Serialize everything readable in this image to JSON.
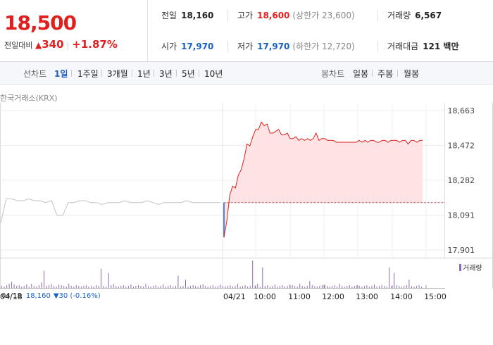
{
  "price": {
    "current": "18,500",
    "change_label": "전일대비",
    "change_arrow": "▲",
    "change_value": "340",
    "change_pct": "+1.87%"
  },
  "stats": {
    "prev_close": {
      "label": "전일",
      "value": "18,160"
    },
    "high": {
      "label": "고가",
      "value": "18,600",
      "sub": "(상한가 23,600)"
    },
    "volume": {
      "label": "거래량",
      "value": "6,567"
    },
    "open": {
      "label": "시가",
      "value": "17,970"
    },
    "low": {
      "label": "저가",
      "value": "17,970",
      "sub": "(하한가 12,720)"
    },
    "amount": {
      "label": "거래대금",
      "value": "121 백만"
    }
  },
  "tabs": {
    "line_label": "선차트",
    "line": [
      "1일",
      "1주일",
      "3개월",
      "1년",
      "3년",
      "5년",
      "10년"
    ],
    "candle_label": "봉차트",
    "candle": [
      "일봉",
      "주봉",
      "월봉"
    ]
  },
  "colors": {
    "up": "#e0201f",
    "down": "#1761c5",
    "active_tab": "#1d5bc8",
    "area_fill": "#fde3e4",
    "prev_day_line": "#c3c3c3",
    "volume_bar": "#8b6ab0"
  },
  "chart": {
    "source": "한국거래소(KRX)",
    "volume_legend": "거래량",
    "prev_day_label": "04/18",
    "prev_day_value": "18,160",
    "prev_day_change": "▼30 (-0.16%)"
  },
  "chart_data": {
    "type": "line",
    "ylim": [
      17901,
      18663
    ],
    "y_ticks": [
      "18,663",
      "18,472",
      "18,282",
      "18,091",
      "17,901"
    ],
    "x_ticks": [
      "04/18",
      "04/21",
      "10:00",
      "11:00",
      "12:00",
      "13:00",
      "14:00",
      "15:00"
    ],
    "reference_line": 18160,
    "prev_day_series": [
      18050,
      18180,
      18180,
      18170,
      18170,
      18180,
      18170,
      18170,
      18160,
      18170,
      18090,
      18090,
      18160,
      18160,
      18170,
      18170,
      18160,
      18160,
      18150,
      18160,
      18160,
      18160,
      18170,
      18160,
      18160,
      18160,
      18170,
      18160,
      18150,
      18160,
      18160,
      18160,
      18160,
      18170,
      18160,
      18160,
      18160,
      18160,
      18160,
      18160
    ],
    "series": [
      {
        "values": [
          17970,
          18060,
          18200,
          18250,
          18240,
          18310,
          18340,
          18400,
          18480,
          18470,
          18520,
          18560,
          18560,
          18600,
          18580,
          18590,
          18540,
          18540,
          18550,
          18560,
          18530,
          18530,
          18540,
          18510,
          18510,
          18520,
          18500,
          18510,
          18500,
          18510,
          18500,
          18510,
          18540,
          18500,
          18510,
          18510,
          18500,
          18500,
          18500,
          18490,
          18490,
          18490,
          18490,
          18490,
          18490,
          18490,
          18490,
          18500,
          18490,
          18500,
          18490,
          18500,
          18500,
          18490,
          18490,
          18500,
          18500,
          18490,
          18500,
          18500,
          18500,
          18490,
          18500,
          18500,
          18480,
          18500,
          18500,
          18490,
          18500,
          18500
        ]
      }
    ],
    "volume": [
      3,
      2,
      4,
      6,
      9,
      5,
      3,
      4,
      2,
      3,
      5,
      2,
      6,
      3,
      2,
      4,
      8,
      25,
      3,
      4,
      6,
      3,
      2,
      5,
      4,
      3,
      2,
      6,
      3,
      2,
      4,
      3,
      2,
      3,
      4,
      2,
      3,
      2,
      4,
      3,
      28,
      3,
      2,
      22,
      4,
      6,
      3,
      2,
      3,
      4,
      2,
      3,
      5,
      2,
      3,
      4,
      3,
      2,
      6,
      3,
      2,
      3,
      4,
      2,
      3,
      5,
      2,
      3,
      4,
      2,
      3,
      18,
      2,
      3,
      12,
      2,
      3,
      4,
      3,
      2,
      4,
      5,
      3,
      2,
      3,
      4,
      2,
      3,
      5,
      3,
      2,
      3,
      4,
      2,
      3,
      6,
      2,
      3,
      4,
      2,
      3,
      40,
      3,
      6,
      2,
      30,
      3,
      4,
      2,
      3,
      5,
      2,
      3,
      4,
      2,
      3,
      5,
      4,
      3,
      2,
      6,
      3,
      2,
      3,
      10,
      4,
      3,
      2,
      3,
      4,
      5,
      3,
      2,
      3,
      4,
      2,
      6,
      3,
      2,
      3,
      4,
      2,
      3,
      4,
      3,
      2,
      3,
      4,
      2,
      3,
      5,
      2,
      3,
      4,
      3,
      2,
      30,
      3,
      22,
      4,
      3,
      2,
      3,
      4,
      12,
      3,
      2,
      3,
      4,
      2
    ]
  }
}
